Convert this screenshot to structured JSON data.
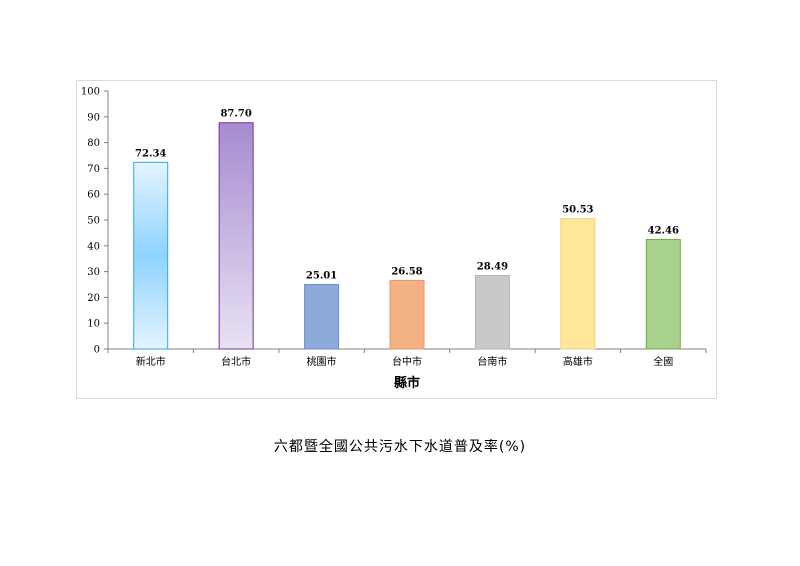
{
  "chart_data": {
    "type": "bar",
    "categories": [
      "新北市",
      "台北市",
      "桃園市",
      "台中市",
      "台南市",
      "高雄市",
      "全國"
    ],
    "values": [
      72.34,
      87.7,
      25.01,
      26.58,
      28.49,
      50.53,
      42.46
    ],
    "value_labels": [
      "72.34",
      "87.70",
      "25.01",
      "26.58",
      "28.49",
      "50.53",
      "42.46"
    ],
    "xlabel": "縣市",
    "ylabel": "",
    "ylim": [
      0,
      100
    ],
    "yticks": [
      "0",
      "10",
      "20",
      "30",
      "40",
      "50",
      "60",
      "70",
      "80",
      "90",
      "100"
    ],
    "grid": false,
    "legend": "none",
    "colors": [
      "#8fd3ff",
      "#a68bd0",
      "#8eaadb",
      "#f4b183",
      "#c9c9c9",
      "#ffe699",
      "#a9d18e"
    ],
    "edge_colors": [
      "#2ea8d8",
      "#7030a0",
      "#6f8fc8",
      "#e39a6a",
      "#b5b5b5",
      "#f2d27a",
      "#70ad47"
    ]
  },
  "caption": "六都暨全國公共污水下水道普及率(%)"
}
